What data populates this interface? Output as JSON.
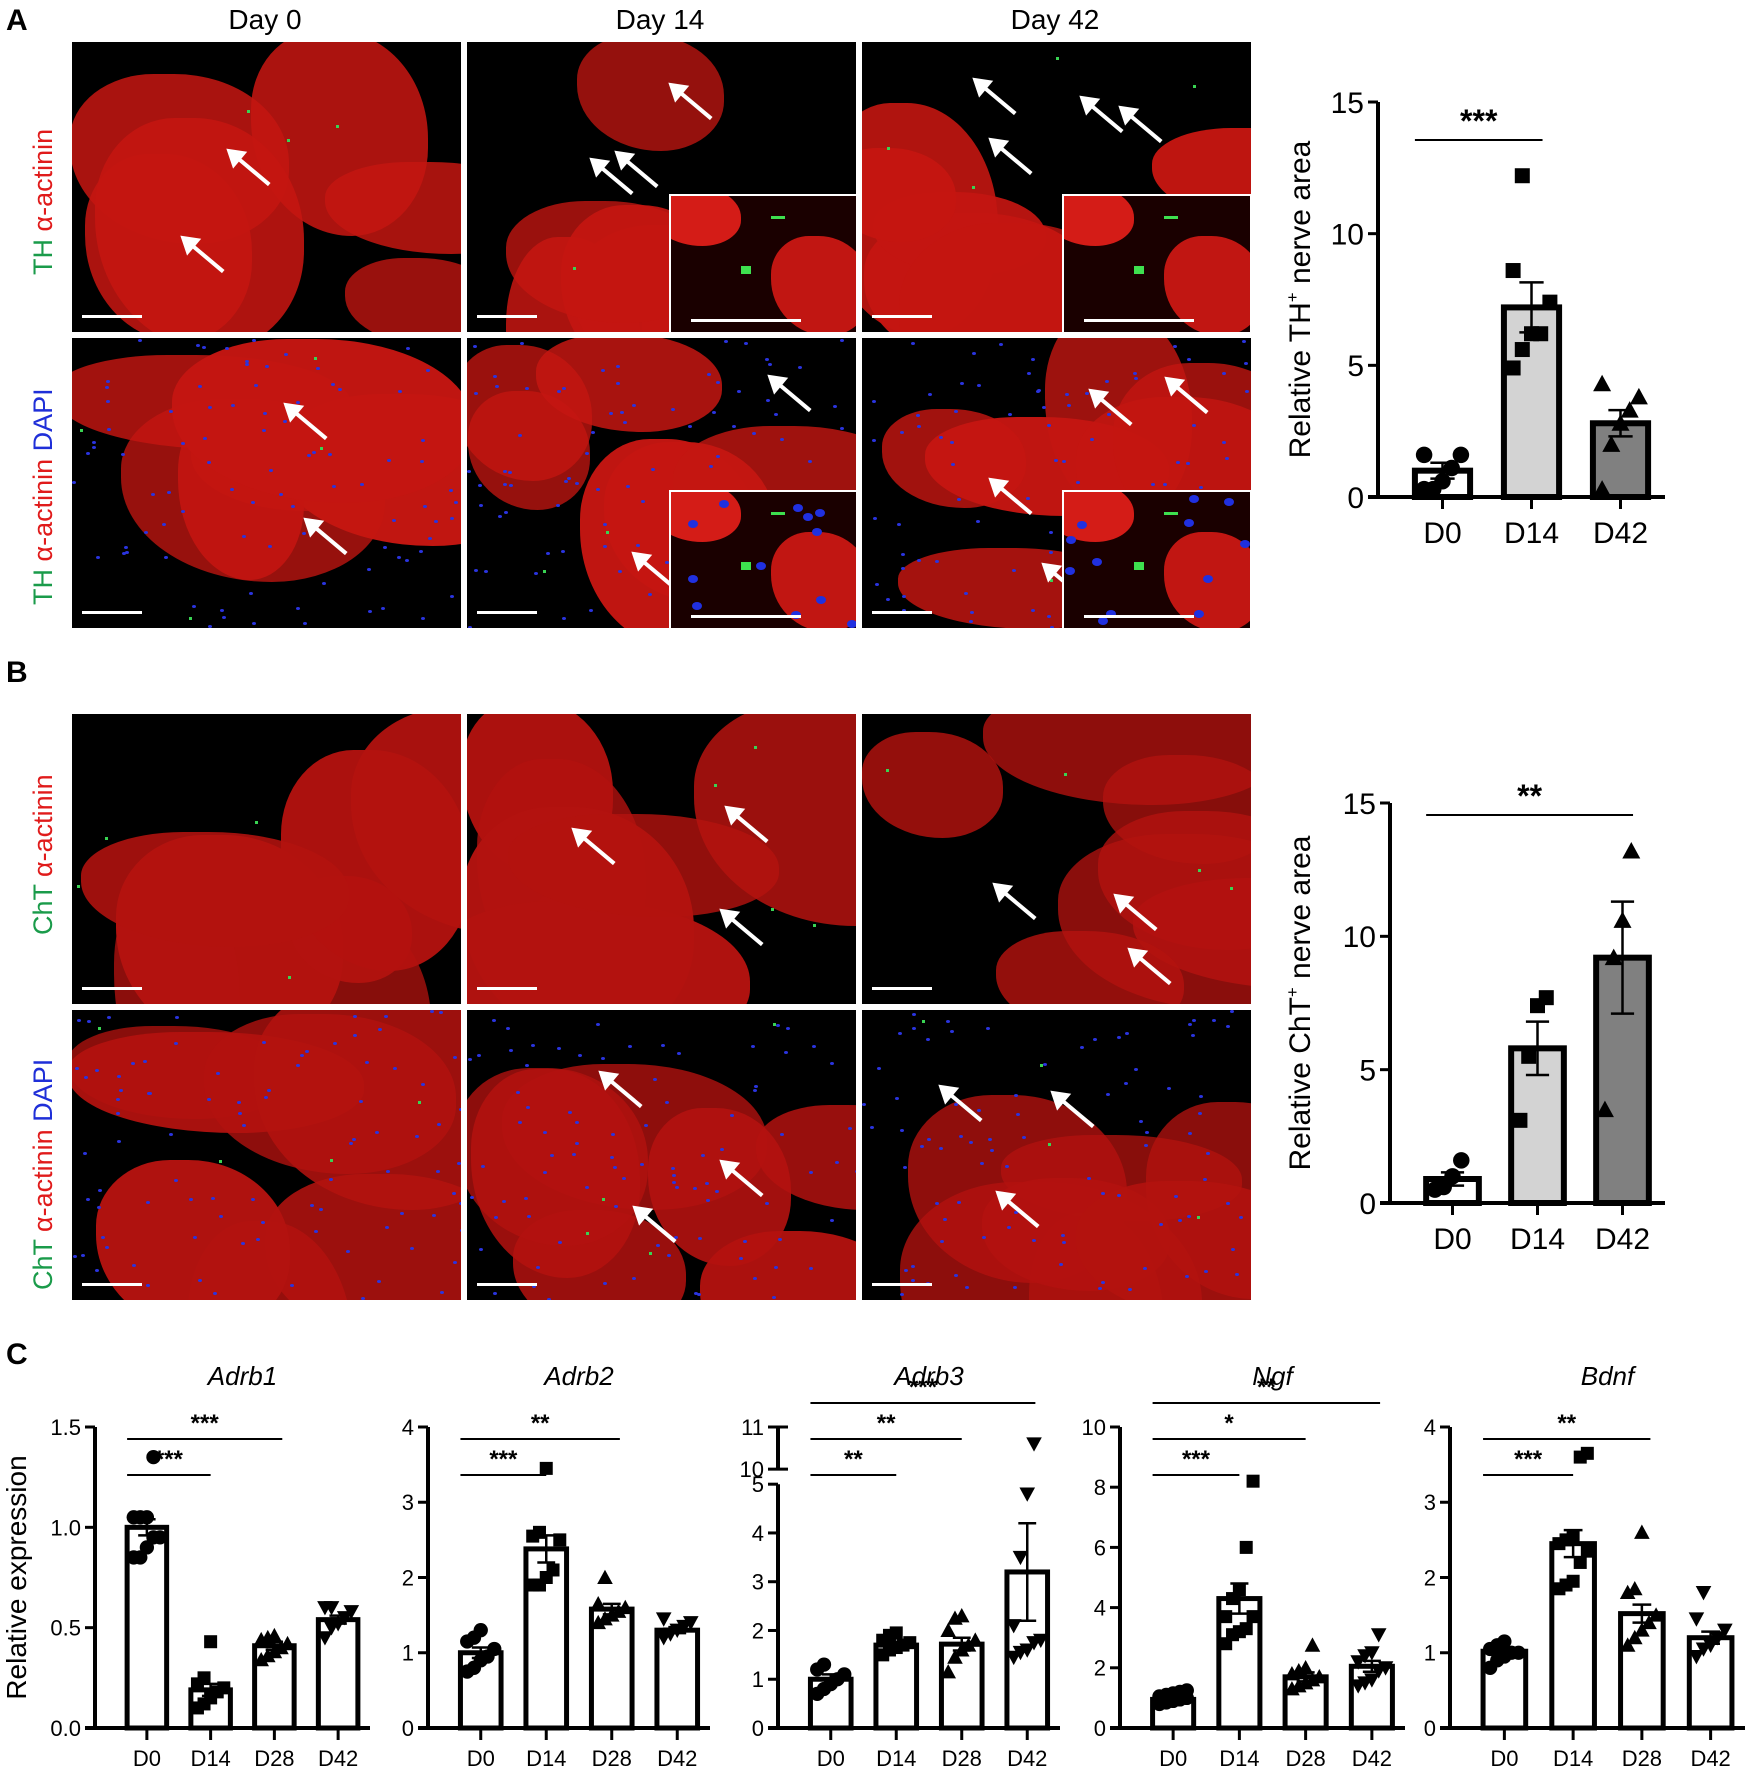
{
  "panel_labels": {
    "a": "A",
    "b": "B",
    "c": "C"
  },
  "panel_a": {
    "columns": [
      "Day 0",
      "Day 14",
      "Day 42"
    ],
    "row_labels": [
      {
        "parts": [
          {
            "text": "TH ",
            "color": "green"
          },
          {
            "text": "α-actinin",
            "color": "red"
          }
        ]
      },
      {
        "parts": [
          {
            "text": "TH ",
            "color": "green"
          },
          {
            "text": "α-actinin ",
            "color": "red"
          },
          {
            "text": "DAPI",
            "color": "blue"
          }
        ]
      }
    ]
  },
  "panel_b": {
    "row_labels": [
      {
        "parts": [
          {
            "text": "ChT ",
            "color": "green"
          },
          {
            "text": "α-actinin",
            "color": "red"
          }
        ]
      },
      {
        "parts": [
          {
            "text": "ChT ",
            "color": "green"
          },
          {
            "text": "α-actinin ",
            "color": "red"
          },
          {
            "text": "DAPI",
            "color": "blue"
          }
        ]
      }
    ]
  },
  "colors": {
    "d0_fill": "#ffffff",
    "d14_fill": "#d3d3d3",
    "d42_fill": "#808080",
    "stain_green": "#1a9b4a",
    "stain_red": "#e01b1b",
    "stain_blue": "#1f2fd8"
  },
  "chart_data": [
    {
      "id": "A_TH",
      "type": "bar",
      "title": "",
      "ylabel": "Relative TH+ nerve area",
      "categories": [
        "D0",
        "D14",
        "D42"
      ],
      "values": [
        1.0,
        7.2,
        2.8
      ],
      "sem": [
        0.3,
        0.95,
        0.5
      ],
      "points": [
        [
          0.3,
          0.3,
          0.6,
          1.1,
          1.6,
          1.6
        ],
        [
          4.9,
          5.6,
          6.2,
          6.2,
          7.4,
          8.6,
          12.2
        ],
        [
          0.3,
          2.0,
          2.8,
          3.3,
          3.8,
          4.3
        ]
      ],
      "markers": [
        "circle",
        "square",
        "triangle"
      ],
      "yticks": [
        0,
        5,
        10,
        15
      ],
      "ylim": [
        0,
        15
      ],
      "fills": [
        "#ffffff",
        "#d3d3d3",
        "#808080"
      ],
      "significance": [
        {
          "from": 0,
          "to": 1,
          "label": "***"
        }
      ]
    },
    {
      "id": "B_ChT",
      "type": "bar",
      "title": "",
      "ylabel": "Relative ChT+ nerve area",
      "categories": [
        "D0",
        "D14",
        "D42"
      ],
      "values": [
        0.9,
        5.8,
        9.2
      ],
      "sem": [
        0.25,
        1.0,
        2.1
      ],
      "points": [
        [
          0.5,
          0.6,
          1.0,
          1.6
        ],
        [
          3.1,
          5.5,
          7.4,
          7.7
        ],
        [
          3.5,
          9.2,
          10.6,
          13.2
        ]
      ],
      "markers": [
        "circle",
        "square",
        "triangle"
      ],
      "yticks": [
        0,
        5,
        10,
        15
      ],
      "ylim": [
        0,
        15
      ],
      "fills": [
        "#ffffff",
        "#d3d3d3",
        "#808080"
      ],
      "significance": [
        {
          "from": 0,
          "to": 2,
          "label": "**"
        }
      ]
    },
    {
      "id": "C_Adrb1",
      "type": "bar",
      "title": "Adrb1",
      "ylabel": "Relative expression",
      "categories": [
        "D0",
        "D14",
        "D28",
        "D42"
      ],
      "values": [
        1.0,
        0.19,
        0.41,
        0.54
      ],
      "sem": [
        0.04,
        0.03,
        0.02,
        0.02
      ],
      "points": [
        [
          0.85,
          0.85,
          0.9,
          0.95,
          0.95,
          1.05,
          1.05,
          1.05,
          1.35
        ],
        [
          0.1,
          0.12,
          0.15,
          0.18,
          0.2,
          0.22,
          0.25,
          0.43
        ],
        [
          0.34,
          0.36,
          0.38,
          0.4,
          0.42,
          0.44,
          0.45,
          0.46
        ],
        [
          0.45,
          0.5,
          0.52,
          0.55,
          0.58,
          0.6,
          0.6
        ]
      ],
      "markers": [
        "circle",
        "square",
        "triangle",
        "triangle-down"
      ],
      "yticks": [
        "0.0",
        "0.5",
        "1.0",
        "1.5"
      ],
      "ylim": [
        0,
        1.5
      ],
      "significance": [
        {
          "from": 0,
          "to": 1,
          "label": "***"
        },
        {
          "from": 0,
          "to": 2,
          "label": "***"
        }
      ]
    },
    {
      "id": "C_Adrb2",
      "type": "bar",
      "title": "Adrb2",
      "ylabel": "",
      "categories": [
        "D0",
        "D14",
        "D28",
        "D42"
      ],
      "values": [
        1.0,
        2.38,
        1.58,
        1.3
      ],
      "sem": [
        0.07,
        0.18,
        0.07,
        0.04
      ],
      "points": [
        [
          0.75,
          0.8,
          0.9,
          0.95,
          1.05,
          1.15,
          1.2,
          1.3
        ],
        [
          1.9,
          1.9,
          2.0,
          2.1,
          2.5,
          2.55,
          2.6,
          3.45
        ],
        [
          1.4,
          1.45,
          1.5,
          1.55,
          1.6,
          1.65,
          2.0
        ],
        [
          1.2,
          1.25,
          1.3,
          1.35,
          1.4,
          1.45
        ]
      ],
      "markers": [
        "circle",
        "square",
        "triangle",
        "triangle-down"
      ],
      "yticks": [
        0,
        1,
        2,
        3,
        4
      ],
      "ylim": [
        0,
        4
      ],
      "significance": [
        {
          "from": 0,
          "to": 1,
          "label": "***"
        },
        {
          "from": 0,
          "to": 2,
          "label": "**"
        }
      ]
    },
    {
      "id": "C_Adrb3",
      "type": "bar",
      "title": "Adrb3",
      "ylabel": "",
      "categories": [
        "D0",
        "D14",
        "D28",
        "D42"
      ],
      "values": [
        1.0,
        1.7,
        1.72,
        3.2
      ],
      "sem": [
        0.1,
        0.06,
        0.13,
        1.0
      ],
      "points": [
        [
          0.7,
          0.8,
          0.9,
          1.0,
          1.1,
          1.2,
          1.3
        ],
        [
          1.5,
          1.6,
          1.65,
          1.7,
          1.75,
          1.8,
          1.9,
          1.95
        ],
        [
          1.15,
          1.45,
          1.6,
          1.7,
          1.8,
          2.0,
          2.25,
          2.3
        ],
        [
          1.45,
          1.55,
          1.6,
          1.75,
          1.8,
          2.1,
          3.5,
          4.8,
          10.6
        ]
      ],
      "markers": [
        "circle",
        "square",
        "triangle",
        "triangle-down"
      ],
      "yticks": [
        0,
        1,
        2,
        3,
        4,
        5,
        10,
        11
      ],
      "ylim": [
        0,
        11
      ],
      "axis_break": [
        5,
        10
      ],
      "significance": [
        {
          "from": 0,
          "to": 1,
          "label": "**"
        },
        {
          "from": 0,
          "to": 2,
          "label": "**"
        },
        {
          "from": 0,
          "to": 3,
          "label": "***"
        }
      ]
    },
    {
      "id": "C_Ngf",
      "type": "bar",
      "title": "Ngf",
      "ylabel": "",
      "categories": [
        "D0",
        "D14",
        "D28",
        "D42"
      ],
      "values": [
        0.95,
        4.3,
        1.7,
        2.05
      ],
      "sem": [
        0.05,
        0.5,
        0.15,
        0.18
      ],
      "points": [
        [
          0.8,
          0.85,
          0.9,
          0.95,
          1.0,
          1.05,
          1.1,
          1.15,
          1.2,
          1.25
        ],
        [
          2.8,
          3.1,
          3.2,
          3.3,
          3.7,
          3.7,
          4.3,
          4.6,
          6.0,
          8.2
        ],
        [
          1.3,
          1.4,
          1.5,
          1.6,
          1.7,
          1.8,
          1.9,
          2.0,
          2.75
        ],
        [
          1.4,
          1.5,
          1.6,
          1.9,
          2.0,
          2.2,
          2.4,
          2.5,
          3.1
        ]
      ],
      "markers": [
        "circle",
        "square",
        "triangle",
        "triangle-down"
      ],
      "yticks": [
        0,
        2,
        4,
        6,
        8,
        10
      ],
      "ylim": [
        0,
        10
      ],
      "significance": [
        {
          "from": 0,
          "to": 1,
          "label": "***"
        },
        {
          "from": 0,
          "to": 2,
          "label": "*"
        },
        {
          "from": 0,
          "to": 3,
          "label": "**"
        }
      ]
    },
    {
      "id": "C_Bdnf",
      "type": "bar",
      "title": "Bdnf",
      "ylabel": "",
      "categories": [
        "D0",
        "D14",
        "D28",
        "D42"
      ],
      "values": [
        1.02,
        2.45,
        1.52,
        1.2
      ],
      "sem": [
        0.03,
        0.18,
        0.12,
        0.08
      ],
      "points": [
        [
          0.8,
          0.9,
          0.95,
          1.0,
          1.0,
          1.05,
          1.1,
          1.15
        ],
        [
          1.85,
          1.9,
          1.95,
          2.2,
          2.35,
          2.45,
          2.5,
          2.55,
          3.6,
          3.65
        ],
        [
          1.1,
          1.2,
          1.3,
          1.4,
          1.5,
          1.8,
          1.85,
          2.6
        ],
        [
          0.95,
          1.05,
          1.1,
          1.2,
          1.3,
          1.45,
          1.8
        ]
      ],
      "markers": [
        "circle",
        "square",
        "triangle",
        "triangle-down"
      ],
      "yticks": [
        0,
        1,
        2,
        3,
        4
      ],
      "ylim": [
        0,
        4
      ],
      "significance": [
        {
          "from": 0,
          "to": 1,
          "label": "***"
        },
        {
          "from": 0,
          "to": 2,
          "label": "**"
        }
      ]
    }
  ]
}
